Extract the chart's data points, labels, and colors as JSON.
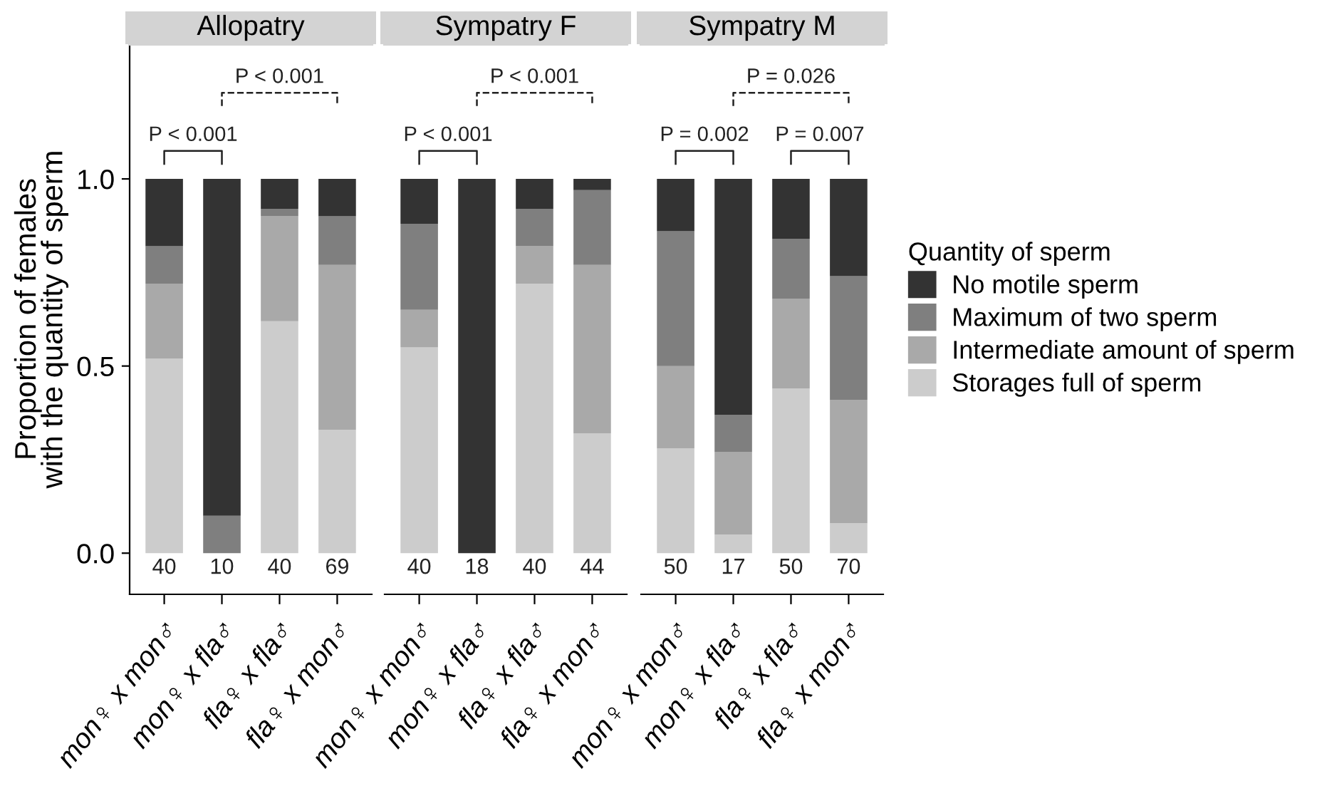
{
  "chart_data": [
    {
      "type": "bar",
      "title": "Allopatry",
      "stacked": true,
      "ylabel": "Proportion of females\nwith the quantity of sperm",
      "categories": [
        "mon♀ x mon♂",
        "mon♀ x fla♂",
        "fla♀ x fla♂",
        "fla♀ x mon♂"
      ],
      "series": [
        {
          "color": "#cccccc",
          "values": [
            0.52,
            0,
            0.62,
            0.33
          ]
        },
        {
          "color": "#a9a9a9",
          "values": [
            0.2,
            0,
            0.28,
            0.44
          ]
        },
        {
          "color": "#7f7f7f",
          "values": [
            0.1,
            0.1,
            0.02,
            0.13
          ]
        },
        {
          "color": "#333333",
          "values": [
            0.18,
            0.9,
            0.08,
            0.1
          ]
        }
      ],
      "ylim": [
        -0.11,
        1.36
      ],
      "yticks": [
        {
          "value": 0,
          "label": "0.0"
        },
        {
          "value": 0.5,
          "label": "0.5"
        },
        {
          "value": 1,
          "label": "1.0"
        }
      ],
      "annotations": [
        "P < 0.001",
        "P < 0.001",
        "40",
        "10",
        "40",
        "69"
      ]
    },
    {
      "type": "bar",
      "title": "Sympatry F",
      "stacked": true,
      "tick_labels": "x",
      "categories": [
        "mon♀ x mon♂",
        "mon♀ x fla♂",
        "fla♀ x fla♂",
        "fla♀ x mon♂"
      ],
      "series": [
        {
          "color": "#cccccc",
          "values": [
            0.55,
            0,
            0.72,
            0.32
          ]
        },
        {
          "color": "#a9a9a9",
          "values": [
            0.1,
            0,
            0.1,
            0.45
          ]
        },
        {
          "color": "#7f7f7f",
          "values": [
            0.23,
            0,
            0.1,
            0.2
          ]
        },
        {
          "color": "#333333",
          "values": [
            0.12,
            1,
            0.08,
            0.03
          ]
        }
      ],
      "ylim": [
        -0.11,
        1.36
      ],
      "annotations": [
        "P < 0.001",
        "P < 0.001",
        "40",
        "18",
        "40",
        "44"
      ]
    },
    {
      "type": "bar",
      "title": "Sympatry M",
      "stacked": true,
      "tick_labels": "x",
      "legend": "right",
      "legend_title": "Quantity of sperm",
      "categories": [
        "mon♀ x mon♂",
        "mon♀ x fla♂",
        "fla♀ x fla♂",
        "fla♀ x mon♂"
      ],
      "series": [
        {
          "name": "Storages full of sperm",
          "color": "#cccccc",
          "values": [
            0.28,
            0.05,
            0.44,
            0.08
          ]
        },
        {
          "name": "Intermediate amount of sperm",
          "color": "#a9a9a9",
          "values": [
            0.22,
            0.22,
            0.24,
            0.33
          ]
        },
        {
          "name": "Maximum of two sperm",
          "color": "#7f7f7f",
          "values": [
            0.36,
            0.1,
            0.16,
            0.33
          ]
        },
        {
          "name": "No motile sperm",
          "color": "#333333",
          "values": [
            0.14,
            0.63,
            0.16,
            0.26
          ]
        }
      ],
      "ylim": [
        -0.11,
        1.36
      ],
      "annotations": [
        "P = 0.002",
        "P = 0.007",
        "P = 0.026",
        "50",
        "17",
        "50",
        "70"
      ]
    }
  ]
}
